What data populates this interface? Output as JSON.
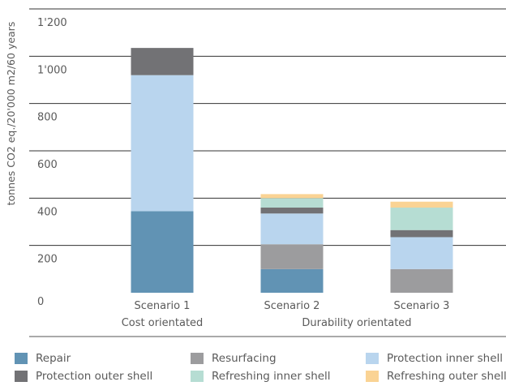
{
  "chart_data": {
    "type": "bar",
    "stacked": true,
    "ylabel": "tonnes CO2 eq./20'000 m2/60 years",
    "ylim": [
      0,
      1200
    ],
    "yticks": [
      {
        "value": 0,
        "label": "0"
      },
      {
        "value": 200,
        "label": "200"
      },
      {
        "value": 400,
        "label": "400"
      },
      {
        "value": 600,
        "label": "600"
      },
      {
        "value": 800,
        "label": "800"
      },
      {
        "value": 1000,
        "label": "1'000"
      },
      {
        "value": 1200,
        "label": "1'200"
      }
    ],
    "grid": true,
    "categories": [
      "Scenario 1",
      "Scenario 2",
      "Scenario 3"
    ],
    "groups": [
      {
        "label": "Cost orientated",
        "categories": [
          "Scenario 1"
        ]
      },
      {
        "label": "Durability orientated",
        "categories": [
          "Scenario 2",
          "Scenario 3"
        ]
      }
    ],
    "legend_position": "bottom",
    "series": [
      {
        "name": "Repair",
        "color": "#6193b4",
        "values": [
          345,
          100,
          0
        ]
      },
      {
        "name": "Resurfacing",
        "color": "#9c9c9e",
        "values": [
          0,
          105,
          100
        ]
      },
      {
        "name": "Protection inner shell",
        "color": "#b9d5ee",
        "values": [
          575,
          130,
          135
        ]
      },
      {
        "name": "Protection outer shell",
        "color": "#727275",
        "values": [
          115,
          25,
          30
        ]
      },
      {
        "name": "Refreshing inner shell",
        "color": "#b6ddd3",
        "values": [
          0,
          40,
          95
        ]
      },
      {
        "name": "Refreshing outer shell",
        "color": "#fad394",
        "values": [
          0,
          17,
          25
        ]
      }
    ]
  }
}
